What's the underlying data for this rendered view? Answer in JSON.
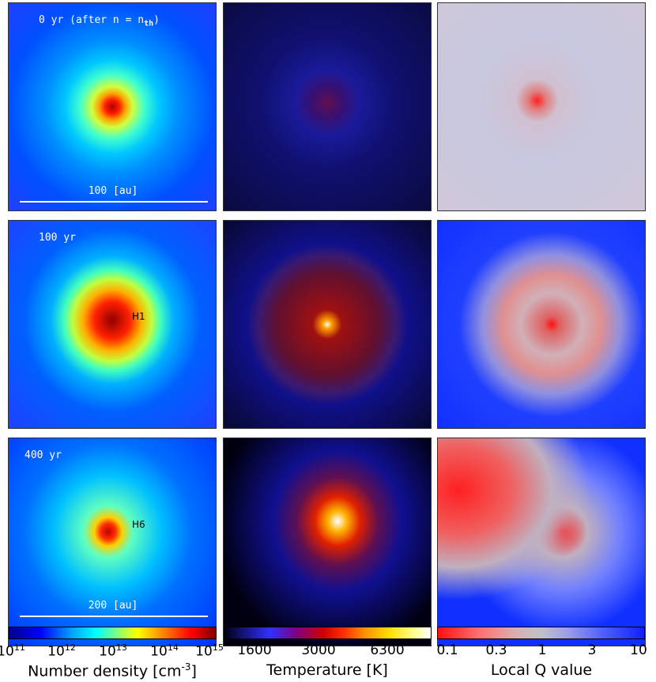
{
  "panels": [
    {
      "label": "0 yr (after n = n",
      "label_subscript": "th",
      "label_end": ")",
      "scale_bar": "100 [au]"
    },
    {
      "label": "100 yr",
      "marker": "H1"
    },
    {
      "label": "400 yr",
      "marker": "H6",
      "scale_bar": "200 [au]"
    }
  ],
  "colorbars": [
    {
      "title": "Number density [cm",
      "title_superscript": "-3",
      "title_end": "]",
      "ticks": [
        {
          "base": "10",
          "exponent": "11"
        },
        {
          "base": "10",
          "exponent": "12"
        },
        {
          "base": "10",
          "exponent": "13"
        },
        {
          "base": "10",
          "exponent": "14"
        },
        {
          "base": "10",
          "exponent": "15"
        }
      ]
    },
    {
      "title": "Temperature [K]",
      "ticks": [
        "1600",
        "3000",
        "6300"
      ]
    },
    {
      "title": "Local Q value",
      "ticks": [
        "0.1",
        "0.3",
        "1",
        "3",
        "10"
      ]
    }
  ]
}
